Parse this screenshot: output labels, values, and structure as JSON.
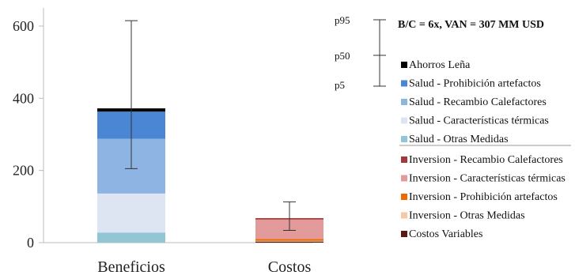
{
  "chart_data": {
    "type": "bar",
    "stacked": true,
    "categories": [
      "Beneficios",
      "Costos"
    ],
    "ylim": [
      0,
      650
    ],
    "yticks": [
      0,
      200,
      400,
      600
    ],
    "series": [
      {
        "name": "Salud - Otras Medidas",
        "values": [
          28,
          0
        ],
        "color": "#92c6d4"
      },
      {
        "name": "Salud - Características térmicas",
        "values": [
          108,
          0
        ],
        "color": "#dde5f3"
      },
      {
        "name": "Salud - Recambio Calefactores",
        "values": [
          152,
          0
        ],
        "color": "#8eb4e3"
      },
      {
        "name": "Salud - Prohibición artefactos",
        "values": [
          75,
          0
        ],
        "color": "#4a86d4"
      },
      {
        "name": "Ahorros Leña",
        "values": [
          9,
          0
        ],
        "color": "#000000"
      },
      {
        "name": "Costos Variables",
        "values": [
          0,
          3
        ],
        "color": "#5a1a14"
      },
      {
        "name": "Inversion - Otras Medidas",
        "values": [
          0,
          2
        ],
        "color": "#f6c9a6"
      },
      {
        "name": "Inversion - Prohibición artefactos",
        "values": [
          0,
          5
        ],
        "color": "#ec6a00"
      },
      {
        "name": "Inversion - Características térmicas",
        "values": [
          0,
          54
        ],
        "color": "#e29a9a"
      },
      {
        "name": "Inversion - Recambio Calefactores",
        "values": [
          0,
          4
        ],
        "color": "#a33a3a"
      }
    ],
    "error_bars": [
      {
        "category": "Beneficios",
        "p5": 205,
        "p50": 372,
        "p95": 615
      },
      {
        "category": "Costos",
        "p5": 34,
        "p50": 68,
        "p95": 113
      }
    ],
    "legend_benefits": [
      "Ahorros Leña",
      "Salud - Prohibición artefactos",
      "Salud - Recambio Calefactores",
      "Salud - Características térmicas",
      "Salud - Otras Medidas"
    ],
    "legend_costs": [
      "Inversion - Recambio Calefactores",
      "Inversion - Características térmicas",
      "Inversion - Prohibición artefactos",
      "Inversion - Otras Medidas",
      "Costos Variables"
    ],
    "percentile_labels": {
      "p95": "p95",
      "p50": "p50",
      "p5": "p5"
    },
    "annotation": "B/C = 6x, VAN = 307 MM USD"
  }
}
